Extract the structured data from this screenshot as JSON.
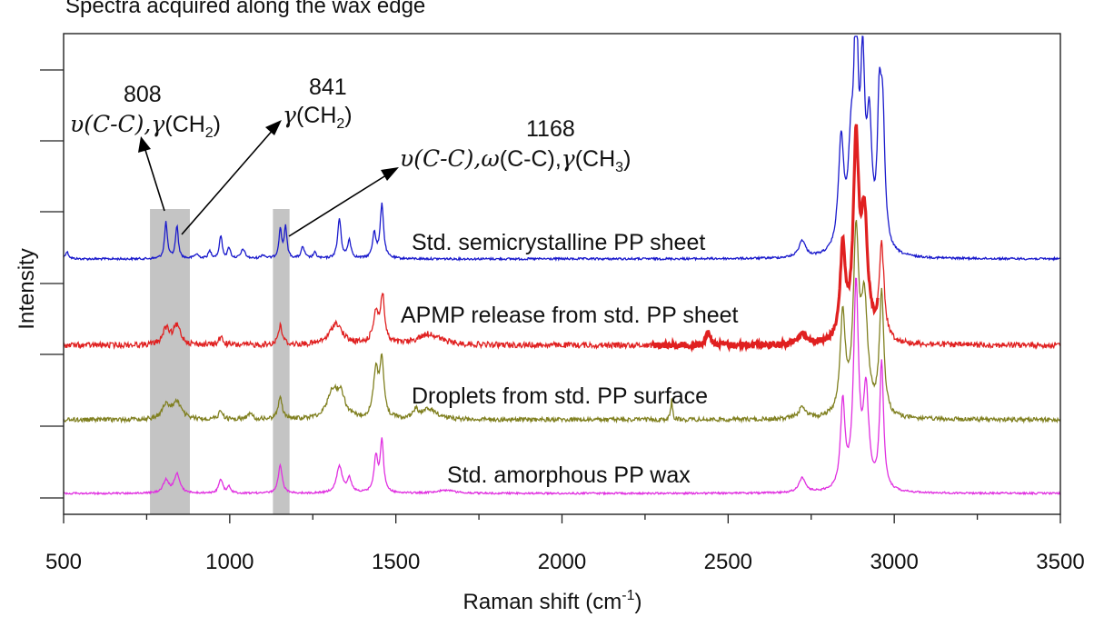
{
  "chart_data": {
    "type": "line",
    "title": "",
    "xlabel_main": "Raman shift (cm",
    "xlabel_sup": "-1",
    "xlabel_close": ")",
    "ylabel": "Intensity",
    "xlim": [
      500,
      3500
    ],
    "x_ticks": [
      500,
      1000,
      1500,
      2000,
      2500,
      3000,
      3500
    ],
    "y_scale": "arbitrary, stacked offsets",
    "grid": false,
    "legend": "none (series labelled in plot)",
    "highlight_bands": [
      {
        "from": 760,
        "to": 880
      },
      {
        "from": 1130,
        "to": 1180
      }
    ],
    "series": [
      {
        "name": "Std. semicrystalline PP sheet",
        "color": "#1a1acc",
        "peaks": [
          [
            510,
            0.1,
            6
          ],
          [
            808,
            0.5,
            5
          ],
          [
            841,
            0.45,
            5
          ],
          [
            900,
            0.06,
            8
          ],
          [
            940,
            0.1,
            6
          ],
          [
            973,
            0.32,
            5
          ],
          [
            998,
            0.15,
            5
          ],
          [
            1040,
            0.13,
            7
          ],
          [
            1100,
            0.05,
            8
          ],
          [
            1152,
            0.4,
            5
          ],
          [
            1168,
            0.42,
            5
          ],
          [
            1220,
            0.16,
            6
          ],
          [
            1256,
            0.08,
            6
          ],
          [
            1330,
            0.55,
            6
          ],
          [
            1360,
            0.25,
            6
          ],
          [
            1435,
            0.35,
            6
          ],
          [
            1458,
            0.75,
            6
          ],
          [
            2723,
            0.23,
            12
          ],
          [
            2840,
            1.5,
            10
          ],
          [
            2870,
            1.2,
            10
          ],
          [
            2885,
            3.1,
            7
          ],
          [
            2905,
            2.3,
            8
          ],
          [
            2925,
            1.6,
            9
          ],
          [
            2955,
            1.7,
            7
          ],
          [
            2965,
            1.7,
            8
          ]
        ]
      },
      {
        "name": "APMP release from std. PP sheet",
        "color": "#e02020",
        "peaks": [
          [
            808,
            0.25,
            12
          ],
          [
            841,
            0.3,
            14
          ],
          [
            973,
            0.12,
            8
          ],
          [
            1152,
            0.3,
            8
          ],
          [
            1320,
            0.35,
            22
          ],
          [
            1440,
            0.5,
            10
          ],
          [
            1460,
            0.75,
            7
          ],
          [
            1600,
            0.18,
            40
          ],
          [
            2440,
            0.2,
            8
          ],
          [
            2723,
            0.17,
            14
          ],
          [
            2845,
            1.5,
            9
          ],
          [
            2885,
            3.1,
            10
          ],
          [
            2910,
            1.9,
            12
          ],
          [
            2962,
            1.5,
            9
          ]
        ]
      },
      {
        "name": "Droplets from std. PP surface",
        "color": "#808020",
        "peaks": [
          [
            808,
            0.2,
            14
          ],
          [
            841,
            0.25,
            16
          ],
          [
            973,
            0.12,
            8
          ],
          [
            1060,
            0.08,
            10
          ],
          [
            1152,
            0.35,
            7
          ],
          [
            1310,
            0.4,
            20
          ],
          [
            1335,
            0.3,
            15
          ],
          [
            1440,
            0.7,
            9
          ],
          [
            1458,
            0.85,
            7
          ],
          [
            1560,
            0.12,
            8
          ],
          [
            1600,
            0.15,
            30
          ],
          [
            2330,
            0.3,
            3
          ],
          [
            2723,
            0.16,
            14
          ],
          [
            2845,
            1.5,
            9
          ],
          [
            2885,
            2.6,
            10
          ],
          [
            2910,
            1.6,
            12
          ],
          [
            2962,
            1.8,
            8
          ]
        ]
      },
      {
        "name": "Std. amorphous PP wax",
        "color": "#e030e0",
        "peaks": [
          [
            808,
            0.2,
            10
          ],
          [
            841,
            0.3,
            10
          ],
          [
            973,
            0.22,
            7
          ],
          [
            998,
            0.1,
            6
          ],
          [
            1152,
            0.45,
            7
          ],
          [
            1330,
            0.42,
            10
          ],
          [
            1360,
            0.22,
            8
          ],
          [
            1440,
            0.55,
            7
          ],
          [
            1458,
            0.8,
            6
          ],
          [
            1650,
            0.05,
            30
          ],
          [
            2723,
            0.23,
            12
          ],
          [
            2845,
            1.35,
            8
          ],
          [
            2885,
            3.2,
            9
          ],
          [
            2915,
            1.5,
            10
          ],
          [
            2962,
            2.0,
            7
          ]
        ]
      }
    ],
    "annotations": [
      {
        "id": "808",
        "value": "808",
        "pre": "υ(C-C),",
        "sym": "γ",
        "post": "(CH",
        "sub": "2",
        "close": ")"
      },
      {
        "id": "841",
        "value": "841",
        "sym": "γ",
        "post": "(CH",
        "sub": "2",
        "close": ")"
      },
      {
        "id": "1168",
        "value": "1168",
        "pre": "υ(C-C),",
        "sym2": "ω",
        "mid": "(C-C),",
        "sym": "γ",
        "post": "(CH",
        "sub": "3",
        "close": ")"
      }
    ]
  },
  "cut_header": "Spectra acquired along the wax edge"
}
